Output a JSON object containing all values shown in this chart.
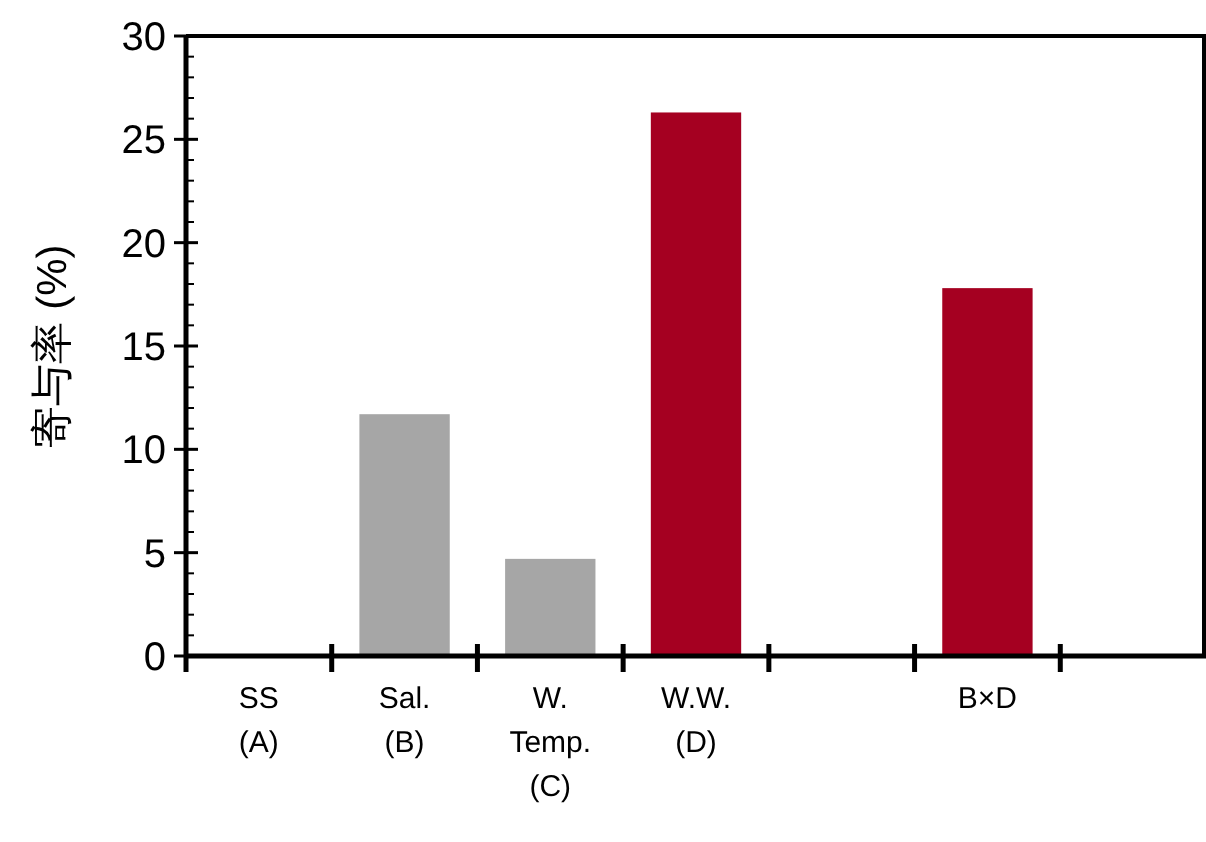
{
  "chart_data": {
    "type": "bar",
    "ylabel": "寄与率 (%)",
    "categories": [
      "SS\n(A)",
      "Sal.\n(B)",
      "W.\nTemp.\n(C)",
      "W.W.\n(D)",
      null,
      "B×D",
      null
    ],
    "values": [
      0,
      11.7,
      4.7,
      26.3,
      null,
      17.8,
      null
    ],
    "colors": [
      "#a6a6a6",
      "#a6a6a6",
      "#a6a6a6",
      "#a50021",
      null,
      "#a50021",
      null
    ],
    "ylim": [
      0,
      30
    ],
    "yticks": [
      0,
      5,
      10,
      15,
      20,
      25,
      30
    ],
    "grid": false
  }
}
